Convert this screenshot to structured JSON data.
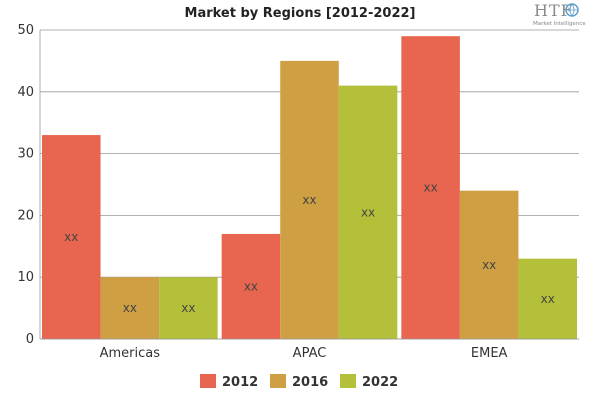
{
  "chart_data": {
    "type": "bar",
    "title": "Market by Regions [2012-2022]",
    "categories": [
      "Americas",
      "APAC",
      "EMEA"
    ],
    "series": [
      {
        "name": "2012",
        "color": "#e8664f",
        "values": [
          33,
          17,
          49
        ],
        "labels": [
          "xx",
          "xx",
          "xx"
        ]
      },
      {
        "name": "2016",
        "color": "#cfa043",
        "values": [
          10,
          45,
          24
        ],
        "labels": [
          "xx",
          "xx",
          "xx"
        ]
      },
      {
        "name": "2022",
        "color": "#b5c03a",
        "values": [
          10,
          41,
          13
        ],
        "labels": [
          "xx",
          "xx",
          "xx"
        ]
      }
    ],
    "yticks": [
      "0",
      "10",
      "20",
      "30",
      "40",
      "50"
    ],
    "ylim": [
      0,
      50
    ],
    "xlabel": "",
    "ylabel": "",
    "grid": true,
    "legend_position": "bottom"
  },
  "logo": {
    "text": "HTF",
    "subtext": "Market Intelligence"
  }
}
